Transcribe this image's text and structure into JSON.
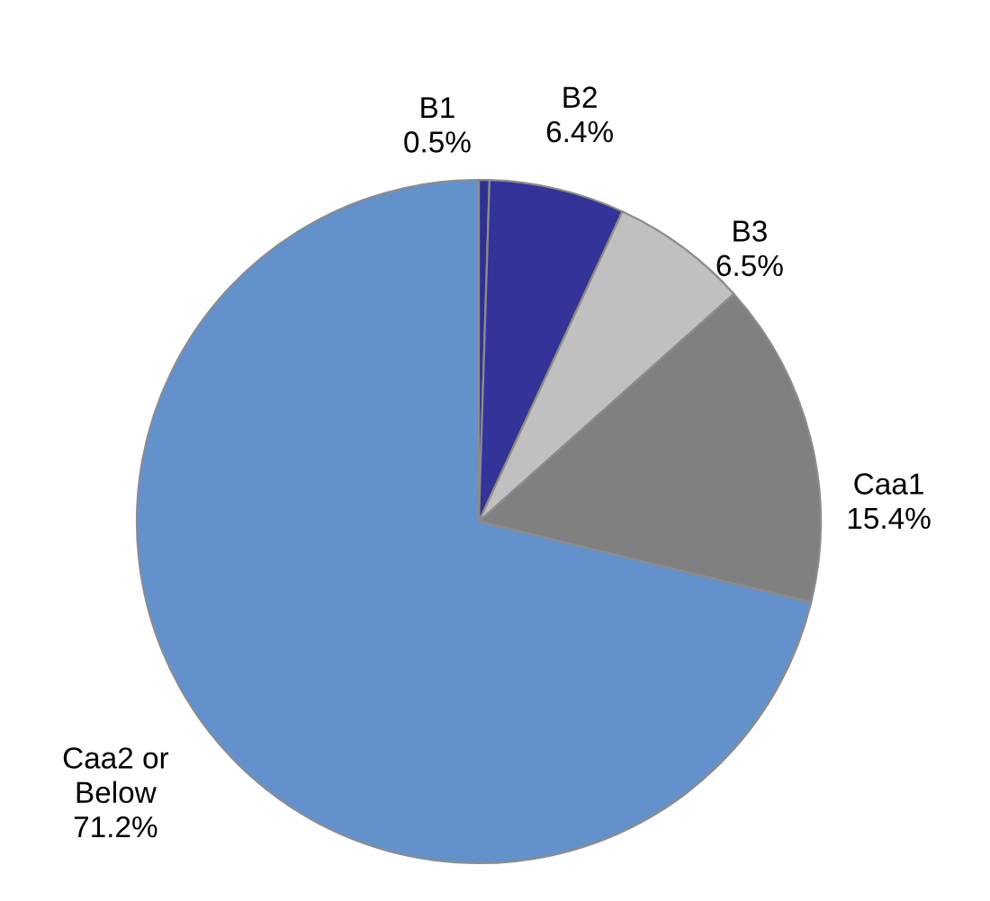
{
  "chart_data": {
    "type": "pie",
    "categories": [
      "B1",
      "B2",
      "B3",
      "Caa1",
      "Caa2 or Below"
    ],
    "values": [
      0.5,
      6.4,
      6.5,
      15.4,
      71.2
    ],
    "colors": [
      "#2e3192",
      "#333399",
      "#c0c0c0",
      "#808080",
      "#6391cc"
    ],
    "value_labels": [
      "0.5%",
      "6.4%",
      "6.5%",
      "15.4%",
      "71.2%"
    ],
    "legend": false
  }
}
